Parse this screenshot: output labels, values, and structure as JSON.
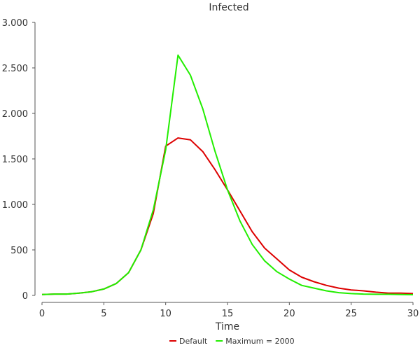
{
  "chart_data": {
    "type": "line",
    "title": "Infected",
    "xlabel": "Time",
    "ylabel": "",
    "xlim": [
      0,
      30
    ],
    "ylim": [
      0,
      3000
    ],
    "x_ticks": [
      0,
      5,
      10,
      15,
      20,
      25,
      30
    ],
    "x_tick_labels": [
      "0",
      "5",
      "10",
      "15",
      "20",
      "25",
      "30"
    ],
    "y_ticks": [
      0,
      500,
      1000,
      1500,
      2000,
      2500,
      3000
    ],
    "y_tick_labels": [
      "0",
      "500",
      "1.000",
      "1.500",
      "2.000",
      "2.500",
      "3.000"
    ],
    "grid": false,
    "legend_position": "bottom-center",
    "x": [
      0,
      1,
      2,
      3,
      4,
      5,
      6,
      7,
      8,
      9,
      10,
      11,
      12,
      13,
      14,
      15,
      16,
      17,
      18,
      19,
      20,
      21,
      22,
      23,
      24,
      25,
      26,
      27,
      28,
      29,
      30
    ],
    "series": [
      {
        "name": "Default",
        "color": "#dd0000",
        "values": [
          10,
          15,
          15,
          25,
          40,
          70,
          130,
          250,
          500,
          900,
          1640,
          1730,
          1710,
          1580,
          1380,
          1160,
          930,
          700,
          520,
          400,
          280,
          200,
          150,
          110,
          80,
          60,
          50,
          35,
          25,
          25,
          20
        ]
      },
      {
        "name": "Maximum = 2000",
        "color": "#22ee00",
        "values": [
          10,
          15,
          15,
          25,
          40,
          70,
          130,
          250,
          500,
          940,
          1600,
          2640,
          2420,
          2050,
          1580,
          1160,
          820,
          560,
          380,
          260,
          180,
          110,
          80,
          50,
          30,
          20,
          15,
          12,
          12,
          10,
          8
        ]
      }
    ]
  }
}
